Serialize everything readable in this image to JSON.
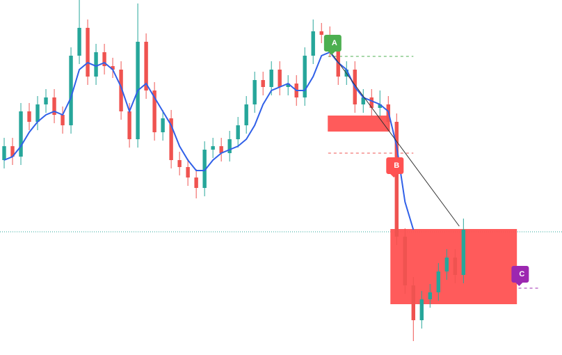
{
  "chart_data": {
    "type": "candlestick",
    "xlim": [
      -0.5,
      66.8
    ],
    "ylim": [
      0,
      510
    ],
    "up_color": "#26a69a",
    "down_color": "#ef5350",
    "x": [
      0,
      1,
      2,
      3,
      4,
      5,
      6,
      7,
      8,
      9,
      10,
      11,
      12,
      13,
      14,
      15,
      16,
      17,
      18,
      19,
      20,
      21,
      22,
      23,
      24,
      25,
      26,
      27,
      28,
      29,
      30,
      31,
      32,
      33,
      34,
      35,
      36,
      37,
      38,
      39,
      40,
      41,
      42,
      43,
      44,
      45,
      46,
      47,
      48,
      49,
      50,
      51,
      52,
      53,
      54,
      55
    ],
    "open": [
      280,
      300,
      285,
      350,
      335,
      360,
      370,
      345,
      330,
      430,
      470,
      400,
      435,
      415,
      410,
      350,
      310,
      450,
      380,
      320,
      340,
      280,
      270,
      255,
      240,
      295,
      300,
      290,
      310,
      330,
      360,
      395,
      385,
      410,
      385,
      390,
      370,
      430,
      465,
      460,
      440,
      400,
      410,
      360,
      370,
      355,
      360,
      335,
      170,
      100,
      50,
      80,
      90,
      120,
      140,
      115
    ],
    "high": [
      312,
      312,
      362,
      362,
      372,
      382,
      382,
      357,
      442,
      510,
      482,
      447,
      447,
      427,
      422,
      362,
      505,
      462,
      392,
      352,
      352,
      292,
      282,
      267,
      307,
      312,
      312,
      322,
      342,
      372,
      407,
      407,
      422,
      422,
      402,
      402,
      442,
      482,
      477,
      472,
      452,
      422,
      422,
      382,
      382,
      380,
      372,
      347,
      182,
      112,
      92,
      102,
      132,
      152,
      152,
      196
    ],
    "low": [
      268,
      273,
      273,
      323,
      323,
      348,
      333,
      318,
      318,
      418,
      388,
      388,
      403,
      398,
      338,
      298,
      298,
      368,
      308,
      308,
      268,
      258,
      243,
      225,
      228,
      283,
      278,
      278,
      298,
      318,
      348,
      373,
      373,
      373,
      373,
      358,
      358,
      418,
      448,
      428,
      388,
      388,
      348,
      348,
      343,
      343,
      323,
      158,
      88,
      20,
      38,
      68,
      78,
      108,
      103,
      103
    ],
    "close": [
      300,
      285,
      350,
      335,
      360,
      370,
      345,
      330,
      430,
      470,
      400,
      435,
      415,
      410,
      350,
      310,
      450,
      380,
      320,
      340,
      280,
      270,
      255,
      240,
      295,
      300,
      290,
      310,
      330,
      360,
      395,
      385,
      410,
      385,
      390,
      370,
      430,
      465,
      460,
      440,
      400,
      410,
      360,
      370,
      355,
      360,
      335,
      170,
      100,
      50,
      80,
      90,
      120,
      140,
      115,
      180
    ],
    "moving_average": {
      "color": "#3060e8",
      "values": [
        280,
        285,
        300,
        320,
        335,
        345,
        350,
        345,
        370,
        410,
        420,
        415,
        420,
        410,
        385,
        350,
        380,
        390,
        370,
        350,
        330,
        300,
        280,
        265,
        265,
        280,
        290,
        295,
        300,
        310,
        330,
        360,
        380,
        385,
        390,
        380,
        380,
        400,
        430,
        435,
        420,
        410,
        385,
        370,
        365,
        360,
        350,
        300,
        220,
        180,
        null,
        null,
        null,
        null,
        null,
        null
      ]
    },
    "zones": [
      {
        "color": "#ff5252",
        "x": [
          38.75,
          46.2
        ],
        "y": [
          321,
          344
        ]
      },
      {
        "color": "#ff5252",
        "x": [
          46.25,
          61.4
        ],
        "y": [
          73,
          181
        ]
      }
    ],
    "levels": [
      {
        "color": "#4caf50",
        "style": "dashed",
        "value": 429,
        "x": [
          38.8,
          49
        ]
      },
      {
        "color": "#ef5350",
        "style": "dashed",
        "value": 290,
        "x": [
          38.8,
          49
        ]
      },
      {
        "color": "#9c27b0",
        "style": "dashed",
        "value": 96,
        "x": [
          61.6,
          64
        ]
      },
      {
        "color": "#26a69a",
        "style": "dotted",
        "value": 177,
        "x": [
          -0.5,
          66.8
        ]
      }
    ],
    "lines": [
      {
        "color": "#333333",
        "x": [
          39.3,
          54.5
        ],
        "y": [
          432,
          185
        ]
      }
    ],
    "markers": [
      {
        "label": "A",
        "color": "#4caf50",
        "x": 38.8,
        "value": 448
      },
      {
        "label": "B",
        "color": "#ff5252",
        "x": 46.25,
        "value": 272
      },
      {
        "label": "C",
        "color": "#9c27b0",
        "x": 61.25,
        "value": 116
      }
    ]
  }
}
